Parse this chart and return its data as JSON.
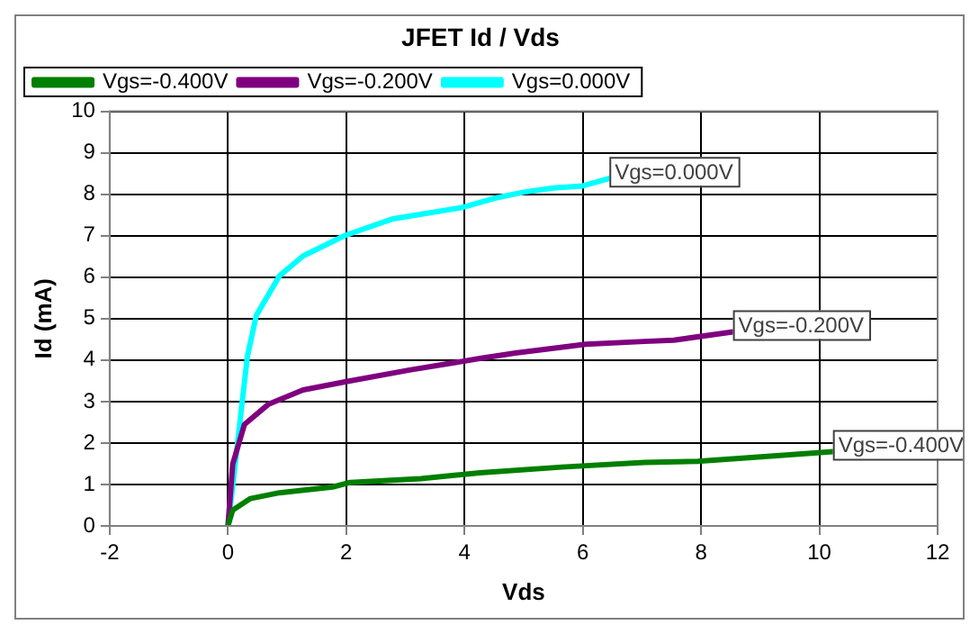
{
  "chart_data": {
    "type": "line",
    "title": "JFET Id / Vds",
    "xlabel": "Vds",
    "ylabel": "Id (mA)",
    "xlim": [
      -2,
      12
    ],
    "xticks": [
      -2,
      0,
      2,
      4,
      6,
      8,
      10,
      12
    ],
    "ylim": [
      0,
      10
    ],
    "yticks": [
      0,
      1,
      2,
      3,
      4,
      5,
      6,
      7,
      8,
      9,
      10
    ],
    "grid": true,
    "legend": "top left",
    "marker": "none",
    "line_style": "solid",
    "series": [
      {
        "name": "Vgs=-0.400V",
        "color": "#007f00",
        "x": [
          0,
          0.08,
          0.38,
          0.87,
          1.77,
          2.07,
          3.26,
          4.26,
          5.65,
          7.04,
          7.94,
          9.23,
          10.23
        ],
        "values": [
          0,
          0.38,
          0.66,
          0.8,
          0.94,
          1.05,
          1.14,
          1.28,
          1.42,
          1.53,
          1.56,
          1.69,
          1.79
        ]
      },
      {
        "name": "Vgs=-0.200V",
        "color": "#7f007f",
        "x": [
          0,
          0.08,
          0.28,
          0.68,
          1.27,
          2,
          3.07,
          4.26,
          4.86,
          6.05,
          7.04,
          7.54,
          8.54
        ],
        "values": [
          0,
          1.49,
          2.45,
          2.93,
          3.28,
          3.48,
          3.76,
          4.04,
          4.17,
          4.38,
          4.45,
          4.48,
          4.68
        ]
      },
      {
        "name": "Vgs=0.000V",
        "color": "#00ffff",
        "x": [
          0,
          0.08,
          0.23,
          0.33,
          0.48,
          0.87,
          1.27,
          1.97,
          2.77,
          3.96,
          4.5,
          5,
          5.5,
          6,
          6.45
        ],
        "values": [
          0,
          0.95,
          2.86,
          4.1,
          5.08,
          6.03,
          6.51,
          7.0,
          7.4,
          7.68,
          7.9,
          8.05,
          8.15,
          8.2,
          8.38
        ]
      }
    ],
    "annotations": [
      {
        "text": "Vgs=0.000V",
        "x": 6.45,
        "y": 8.38
      },
      {
        "text": "Vgs=-0.200V",
        "x": 8.54,
        "y": 4.68
      },
      {
        "text": "Vgs=-0.400V",
        "x": 10.23,
        "y": 1.79
      }
    ]
  }
}
